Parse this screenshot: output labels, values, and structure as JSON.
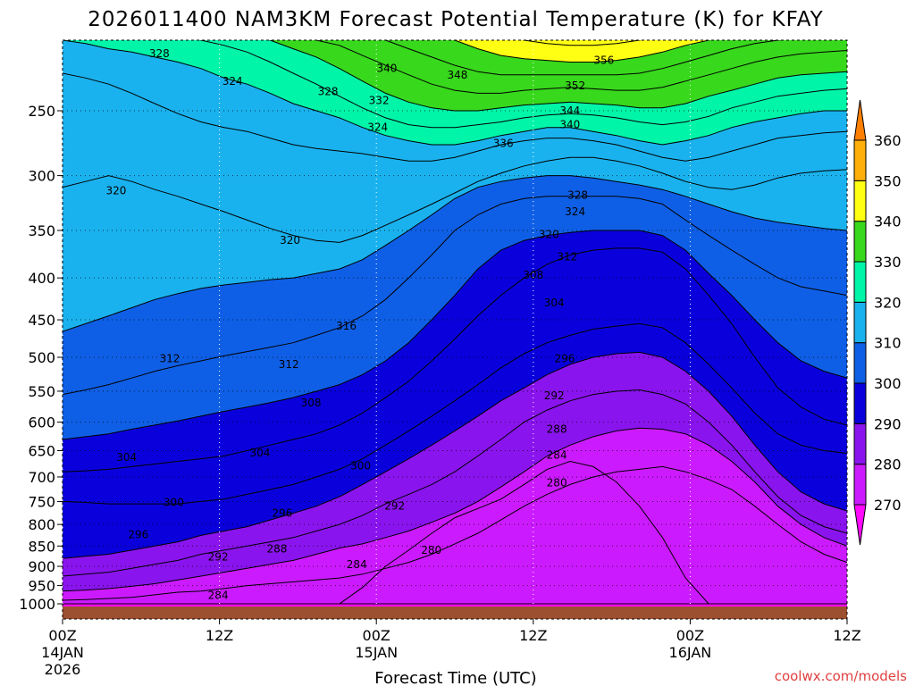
{
  "chart_data": {
    "type": "heatmap",
    "title": "2026011400 NAM3KM Forecast Potential Temperature (K) for KFAY",
    "xlabel": "Forecast Time (UTC)",
    "ylabel": "",
    "credit": "coolwx.com/models",
    "x_ticks": [
      {
        "hour": 0,
        "label": "00Z",
        "sub1": "14JAN",
        "sub2": "2026"
      },
      {
        "hour": 12,
        "label": "12Z",
        "sub1": "",
        "sub2": ""
      },
      {
        "hour": 24,
        "label": "00Z",
        "sub1": "15JAN",
        "sub2": ""
      },
      {
        "hour": 36,
        "label": "12Z",
        "sub1": "",
        "sub2": ""
      },
      {
        "hour": 48,
        "label": "00Z",
        "sub1": "16JAN",
        "sub2": ""
      },
      {
        "hour": 60,
        "label": "12Z",
        "sub1": "",
        "sub2": ""
      }
    ],
    "xlim": [
      0,
      60
    ],
    "y_ticks": [
      {
        "p": 250,
        "label": "250"
      },
      {
        "p": 300,
        "label": "300"
      },
      {
        "p": 350,
        "label": "350"
      },
      {
        "p": 400,
        "label": "400"
      },
      {
        "p": 450,
        "label": "450"
      },
      {
        "p": 500,
        "label": "500"
      },
      {
        "p": 550,
        "label": "550"
      },
      {
        "p": 600,
        "label": "600"
      },
      {
        "p": 650,
        "label": "650"
      },
      {
        "p": 700,
        "label": "700"
      },
      {
        "p": 750,
        "label": "750"
      },
      {
        "p": 800,
        "label": "800"
      },
      {
        "p": 850,
        "label": "850"
      },
      {
        "p": 900,
        "label": "900"
      },
      {
        "p": 950,
        "label": "950"
      },
      {
        "p": 1000,
        "label": "1000"
      }
    ],
    "ylim_pressure": [
      200,
      1010
    ],
    "y_scale": "log-pressure, inverted",
    "grid": "dotted",
    "colorbar": {
      "position": "right",
      "levels": [
        270,
        280,
        290,
        300,
        310,
        320,
        330,
        340,
        350,
        360
      ],
      "labels": [
        "270",
        "280",
        "290",
        "300",
        "310",
        "320",
        "330",
        "340",
        "350",
        "360"
      ],
      "colors": [
        "#ff0aff",
        "#cc1aff",
        "#8a14ee",
        "#0a00dc",
        "#0f5fe6",
        "#1ab2ee",
        "#00f5a8",
        "#38d81c",
        "#ffff14",
        "#ffaf0a",
        "#ff7f00"
      ]
    },
    "ground_color": "#9c5030",
    "series": [
      {
        "theta": 276,
        "p": [
          1000,
          1000,
          1000,
          1000,
          1000,
          1000,
          1000,
          1000,
          1000,
          1000,
          1000,
          1000,
          1000,
          1000,
          1000,
          1000,
          1000,
          1000,
          1000,
          1000,
          1000
        ]
      },
      {
        "theta": 280,
        "p": [
          1000,
          1000,
          1000,
          1000,
          1000,
          1000,
          1000,
          1000,
          1000,
          1000,
          1000,
          1000,
          1000,
          955,
          900,
          860,
          820,
          785,
          765,
          745,
          715,
          685,
          670,
          680,
          710,
          760,
          830,
          930,
          1000,
          1000,
          1000,
          1000,
          1000,
          1000,
          1000
        ]
      },
      {
        "theta": 284,
        "p": [
          990,
          988,
          985,
          982,
          975,
          968,
          965,
          958,
          950,
          945,
          940,
          935,
          930,
          920,
          905,
          890,
          870,
          845,
          820,
          790,
          760,
          735,
          715,
          700,
          690,
          685,
          680,
          690,
          705,
          725,
          760,
          800,
          840,
          870,
          890
        ]
      },
      {
        "theta": 288,
        "p": [
          965,
          962,
          958,
          952,
          945,
          935,
          925,
          915,
          905,
          895,
          885,
          870,
          855,
          845,
          830,
          815,
          795,
          775,
          750,
          720,
          690,
          660,
          640,
          625,
          615,
          610,
          612,
          620,
          640,
          670,
          710,
          760,
          800,
          830,
          850
        ]
      },
      {
        "theta": 292,
        "p": [
          925,
          920,
          915,
          905,
          895,
          885,
          870,
          860,
          850,
          840,
          830,
          815,
          800,
          780,
          755,
          735,
          715,
          690,
          660,
          630,
          600,
          580,
          565,
          555,
          550,
          548,
          555,
          570,
          600,
          640,
          690,
          740,
          780,
          805,
          820
        ]
      },
      {
        "theta": 296,
        "p": [
          880,
          875,
          870,
          860,
          850,
          840,
          825,
          815,
          805,
          790,
          775,
          760,
          740,
          715,
          690,
          665,
          640,
          615,
          590,
          565,
          545,
          525,
          510,
          500,
          495,
          493,
          500,
          520,
          550,
          590,
          640,
          690,
          730,
          755,
          770
        ]
      },
      {
        "theta": 300,
        "p": [
          750,
          752,
          755,
          755,
          755,
          755,
          750,
          745,
          735,
          725,
          715,
          700,
          685,
          665,
          640,
          615,
          590,
          565,
          540,
          515,
          495,
          480,
          470,
          462,
          458,
          455,
          460,
          480,
          510,
          545,
          585,
          620,
          640,
          650,
          655
        ]
      },
      {
        "theta": 304,
        "p": [
          690,
          688,
          685,
          680,
          675,
          670,
          665,
          660,
          650,
          640,
          630,
          620,
          605,
          585,
          560,
          535,
          505,
          475,
          445,
          420,
          400,
          385,
          375,
          370,
          368,
          368,
          372,
          390,
          420,
          455,
          500,
          545,
          575,
          595,
          605
        ]
      },
      {
        "theta": 308,
        "p": [
          630,
          625,
          620,
          612,
          605,
          598,
          590,
          582,
          575,
          568,
          560,
          550,
          540,
          525,
          505,
          480,
          450,
          420,
          390,
          370,
          360,
          355,
          352,
          350,
          350,
          350,
          355,
          370,
          395,
          420,
          450,
          480,
          505,
          520,
          530
        ]
      },
      {
        "theta": 312,
        "p": [
          555,
          548,
          540,
          530,
          520,
          512,
          505,
          498,
          492,
          486,
          480,
          470,
          460,
          445,
          425,
          400,
          375,
          350,
          335,
          325,
          320,
          318,
          318,
          318,
          318,
          320,
          325,
          340,
          355,
          370,
          385,
          400,
          410,
          415,
          420
        ]
      },
      {
        "theta": 316,
        "p": [
          465,
          455,
          445,
          435,
          425,
          418,
          412,
          408,
          405,
          402,
          400,
          395,
          390,
          380,
          365,
          350,
          335,
          320,
          310,
          305,
          302,
          300,
          300,
          302,
          305,
          308,
          312,
          318,
          325,
          332,
          338,
          342,
          345,
          348,
          350
        ]
      },
      {
        "theta": 320,
        "p": [
          310,
          305,
          300,
          305,
          312,
          318,
          325,
          332,
          340,
          348,
          355,
          360,
          362,
          355,
          345,
          335,
          325,
          315,
          305,
          298,
          292,
          288,
          285,
          285,
          288,
          292,
          298,
          305,
          310,
          312,
          308,
          302,
          298,
          296,
          295
        ]
      },
      {
        "theta": 324,
        "p": [
          225,
          228,
          232,
          238,
          245,
          252,
          258,
          262,
          265,
          270,
          275,
          278,
          280,
          282,
          285,
          288,
          288,
          285,
          280,
          275,
          272,
          270,
          270,
          272,
          275,
          280,
          285,
          288,
          285,
          280,
          275,
          270,
          268,
          266,
          265
        ]
      },
      {
        "theta": 328,
        "p": [
          205,
          207,
          210,
          212,
          215,
          218,
          222,
          228,
          232,
          238,
          245,
          250,
          255,
          262,
          268,
          272,
          275,
          275,
          272,
          268,
          265,
          262,
          262,
          265,
          268,
          272,
          275,
          272,
          268,
          262,
          258,
          255,
          252,
          250,
          250
        ]
      },
      {
        "theta": 332,
        "p": [
          200,
          200,
          200,
          200,
          200,
          202,
          205,
          208,
          212,
          218,
          225,
          232,
          240,
          248,
          255,
          260,
          262,
          262,
          260,
          258,
          255,
          253,
          252,
          253,
          255,
          258,
          260,
          258,
          254,
          248,
          244,
          240,
          238,
          236,
          235
        ]
      },
      {
        "theta": 336,
        "p": [
          200,
          200,
          200,
          200,
          200,
          200,
          200,
          200,
          202,
          205,
          210,
          215,
          222,
          230,
          238,
          244,
          248,
          250,
          250,
          248,
          246,
          245,
          244,
          245,
          246,
          248,
          248,
          245,
          240,
          236,
          232,
          228,
          226,
          225,
          224
        ]
      },
      {
        "theta": 340,
        "p": [
          200,
          200,
          200,
          200,
          200,
          200,
          200,
          200,
          200,
          200,
          202,
          205,
          208,
          214,
          220,
          226,
          232,
          236,
          238,
          238,
          236,
          235,
          234,
          235,
          236,
          236,
          234,
          230,
          226,
          222,
          218,
          215,
          213,
          212,
          211
        ]
      },
      {
        "theta": 344,
        "p": [
          200,
          200,
          200,
          200,
          200,
          200,
          200,
          200,
          200,
          200,
          200,
          200,
          200,
          202,
          205,
          210,
          215,
          220,
          224,
          226,
          226,
          226,
          226,
          226,
          226,
          225,
          222,
          218,
          214,
          210,
          207,
          205,
          204,
          203,
          203
        ]
      },
      {
        "theta": 348,
        "p": [
          200,
          200,
          200,
          200,
          200,
          200,
          200,
          200,
          200,
          200,
          200,
          200,
          200,
          200,
          200,
          200,
          202,
          205,
          210,
          214,
          216,
          217,
          218,
          218,
          217,
          215,
          212,
          208,
          205,
          202,
          201,
          200,
          200,
          200,
          200
        ]
      },
      {
        "theta": 352,
        "p": [
          200,
          200,
          200,
          200,
          200,
          200,
          200,
          200,
          200,
          200,
          200,
          200,
          200,
          200,
          200,
          200,
          200,
          200,
          200,
          202,
          205,
          207,
          208,
          208,
          207,
          205,
          202,
          200,
          200,
          200,
          200,
          200,
          200,
          200,
          200
        ]
      },
      {
        "theta": 356,
        "p": [
          200,
          200,
          200,
          200,
          200,
          200,
          200,
          200,
          200,
          200,
          200,
          200,
          200,
          200,
          200,
          200,
          200,
          200,
          200,
          200,
          200,
          200,
          201,
          201,
          200,
          200,
          200,
          200,
          200,
          200,
          200,
          200,
          200,
          200,
          200
        ]
      }
    ],
    "labels": [
      {
        "text": "328",
        "hour": 7.4,
        "p": 213
      },
      {
        "text": "324",
        "hour": 13.0,
        "p": 230
      },
      {
        "text": "340",
        "hour": 24.8,
        "p": 222
      },
      {
        "text": "328",
        "hour": 20.3,
        "p": 237
      },
      {
        "text": "332",
        "hour": 24.2,
        "p": 243
      },
      {
        "text": "348",
        "hour": 30.2,
        "p": 226
      },
      {
        "text": "356",
        "hour": 41.4,
        "p": 217
      },
      {
        "text": "352",
        "hour": 39.2,
        "p": 233
      },
      {
        "text": "344",
        "hour": 38.8,
        "p": 250
      },
      {
        "text": "340",
        "hour": 38.8,
        "p": 260
      },
      {
        "text": "324",
        "hour": 24.1,
        "p": 262
      },
      {
        "text": "336",
        "hour": 33.7,
        "p": 274
      },
      {
        "text": "320",
        "hour": 4.1,
        "p": 313
      },
      {
        "text": "328",
        "hour": 39.4,
        "p": 317
      },
      {
        "text": "324",
        "hour": 39.2,
        "p": 332
      },
      {
        "text": "320",
        "hour": 37.2,
        "p": 354
      },
      {
        "text": "320",
        "hour": 17.4,
        "p": 360
      },
      {
        "text": "312",
        "hour": 38.6,
        "p": 377
      },
      {
        "text": "308",
        "hour": 36.0,
        "p": 397
      },
      {
        "text": "304",
        "hour": 37.6,
        "p": 429
      },
      {
        "text": "316",
        "hour": 21.7,
        "p": 458
      },
      {
        "text": "296",
        "hour": 38.4,
        "p": 502
      },
      {
        "text": "312",
        "hour": 8.2,
        "p": 502
      },
      {
        "text": "312",
        "hour": 17.3,
        "p": 510
      },
      {
        "text": "292",
        "hour": 37.6,
        "p": 557
      },
      {
        "text": "308",
        "hour": 19.0,
        "p": 568
      },
      {
        "text": "288",
        "hour": 37.8,
        "p": 612
      },
      {
        "text": "304",
        "hour": 4.9,
        "p": 662
      },
      {
        "text": "304",
        "hour": 15.1,
        "p": 654
      },
      {
        "text": "284",
        "hour": 37.8,
        "p": 658
      },
      {
        "text": "300",
        "hour": 22.8,
        "p": 678
      },
      {
        "text": "280",
        "hour": 37.8,
        "p": 712
      },
      {
        "text": "300",
        "hour": 8.5,
        "p": 752
      },
      {
        "text": "292",
        "hour": 25.4,
        "p": 760
      },
      {
        "text": "296",
        "hour": 16.8,
        "p": 775
      },
      {
        "text": "296",
        "hour": 5.8,
        "p": 823
      },
      {
        "text": "288",
        "hour": 16.4,
        "p": 857
      },
      {
        "text": "280",
        "hour": 28.2,
        "p": 860
      },
      {
        "text": "292",
        "hour": 11.9,
        "p": 877
      },
      {
        "text": "284",
        "hour": 22.5,
        "p": 895
      },
      {
        "text": "284",
        "hour": 11.9,
        "p": 977
      }
    ]
  }
}
